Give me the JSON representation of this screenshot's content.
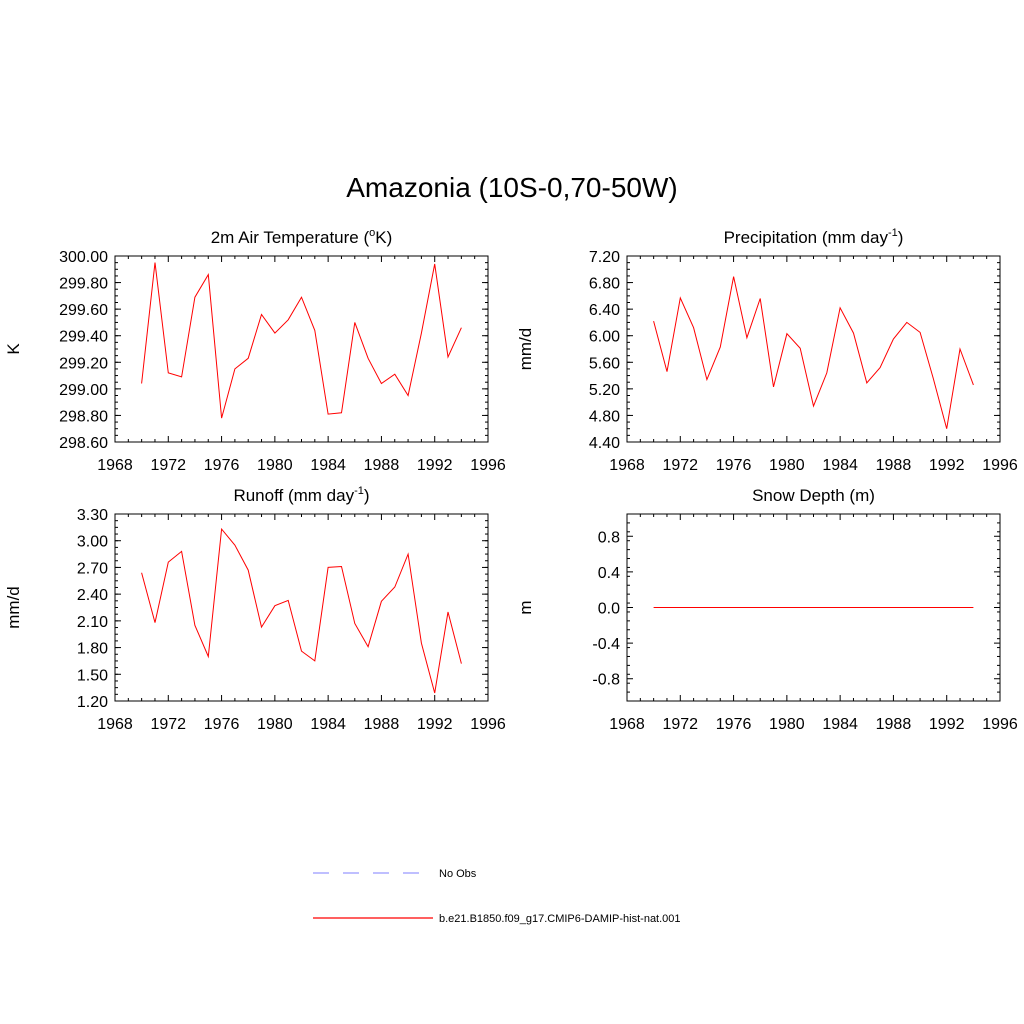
{
  "figure": {
    "title": "Amazonia (10S-0,70-50W)"
  },
  "chart_data": [
    {
      "type": "line",
      "title": "2m Air Temperature (",
      "title_sup": "o",
      "title_tail": "K)",
      "ylabel": "K",
      "xlim": [
        1968,
        1996
      ],
      "ylim": [
        298.6,
        300.0
      ],
      "xticks": [
        1968,
        1972,
        1976,
        1980,
        1984,
        1988,
        1992,
        1996
      ],
      "yticks": [
        "298.60",
        "298.80",
        "299.00",
        "299.20",
        "299.40",
        "299.60",
        "299.80",
        "300.00"
      ],
      "x": [
        1970,
        1971,
        1972,
        1973,
        1974,
        1975,
        1976,
        1977,
        1978,
        1979,
        1980,
        1981,
        1982,
        1983,
        1984,
        1985,
        1986,
        1987,
        1988,
        1989,
        1990,
        1991,
        1992,
        1993,
        1994
      ],
      "series": [
        {
          "values": [
            299.04,
            299.95,
            299.12,
            299.09,
            299.69,
            299.86,
            298.78,
            299.15,
            299.23,
            299.56,
            299.42,
            299.52,
            299.69,
            299.44,
            298.81,
            298.82,
            299.5,
            299.23,
            299.04,
            299.11,
            298.95,
            299.42,
            299.94,
            299.24,
            299.46
          ],
          "color": "#ff0000"
        }
      ]
    },
    {
      "type": "line",
      "title": "Precipitation (mm day",
      "title_sup": "-1",
      "title_tail": ")",
      "ylabel": "mm/d",
      "xlim": [
        1968,
        1996
      ],
      "ylim": [
        4.4,
        7.2
      ],
      "xticks": [
        1968,
        1972,
        1976,
        1980,
        1984,
        1988,
        1992,
        1996
      ],
      "yticks": [
        "4.40",
        "4.80",
        "5.20",
        "5.60",
        "6.00",
        "6.40",
        "6.80",
        "7.20"
      ],
      "x": [
        1970,
        1971,
        1972,
        1973,
        1974,
        1975,
        1976,
        1977,
        1978,
        1979,
        1980,
        1981,
        1982,
        1983,
        1984,
        1985,
        1986,
        1987,
        1988,
        1989,
        1990,
        1991,
        1992,
        1993,
        1994
      ],
      "series": [
        {
          "values": [
            6.22,
            5.46,
            6.57,
            6.12,
            5.34,
            5.83,
            6.89,
            5.97,
            6.56,
            5.23,
            6.03,
            5.81,
            4.94,
            5.44,
            6.42,
            6.04,
            5.29,
            5.52,
            5.95,
            6.2,
            6.05,
            5.35,
            4.6,
            5.8,
            5.26
          ],
          "color": "#ff0000"
        }
      ]
    },
    {
      "type": "line",
      "title": "Runoff (mm day",
      "title_sup": "-1",
      "title_tail": ")",
      "ylabel": "mm/d",
      "xlim": [
        1968,
        1996
      ],
      "ylim": [
        1.2,
        3.3
      ],
      "xticks": [
        1968,
        1972,
        1976,
        1980,
        1984,
        1988,
        1992,
        1996
      ],
      "yticks": [
        "1.20",
        "1.50",
        "1.80",
        "2.10",
        "2.40",
        "2.70",
        "3.00",
        "3.30"
      ],
      "x": [
        1970,
        1971,
        1972,
        1973,
        1974,
        1975,
        1976,
        1977,
        1978,
        1979,
        1980,
        1981,
        1982,
        1983,
        1984,
        1985,
        1986,
        1987,
        1988,
        1989,
        1990,
        1991,
        1992,
        1993,
        1994
      ],
      "series": [
        {
          "values": [
            2.64,
            2.08,
            2.76,
            2.88,
            2.05,
            1.7,
            3.13,
            2.95,
            2.67,
            2.03,
            2.27,
            2.33,
            1.76,
            1.65,
            2.7,
            2.71,
            2.07,
            1.81,
            2.32,
            2.48,
            2.85,
            1.85,
            1.29,
            2.2,
            1.62
          ],
          "color": "#ff0000"
        }
      ]
    },
    {
      "type": "line",
      "title": "Snow Depth (m)",
      "title_sup": "",
      "title_tail": "",
      "ylabel": "m",
      "xlim": [
        1968,
        1996
      ],
      "ylim": [
        -1.05,
        1.05
      ],
      "xticks": [
        1968,
        1972,
        1976,
        1980,
        1984,
        1988,
        1992,
        1996
      ],
      "yticks": [
        "-0.8",
        "-0.4",
        "0.0",
        "0.4",
        "0.8"
      ],
      "x": [
        1970,
        1994
      ],
      "series": [
        {
          "values": [
            0.0,
            0.0
          ],
          "color": "#ff0000"
        }
      ]
    }
  ],
  "legend": {
    "items": [
      {
        "label": "No Obs",
        "color": "#9999ff",
        "dashed": true
      },
      {
        "label": "b.e21.B1850.f09_g17.CMIP6-DAMIP-hist-nat.001",
        "color": "#ff0000",
        "dashed": false
      }
    ]
  }
}
